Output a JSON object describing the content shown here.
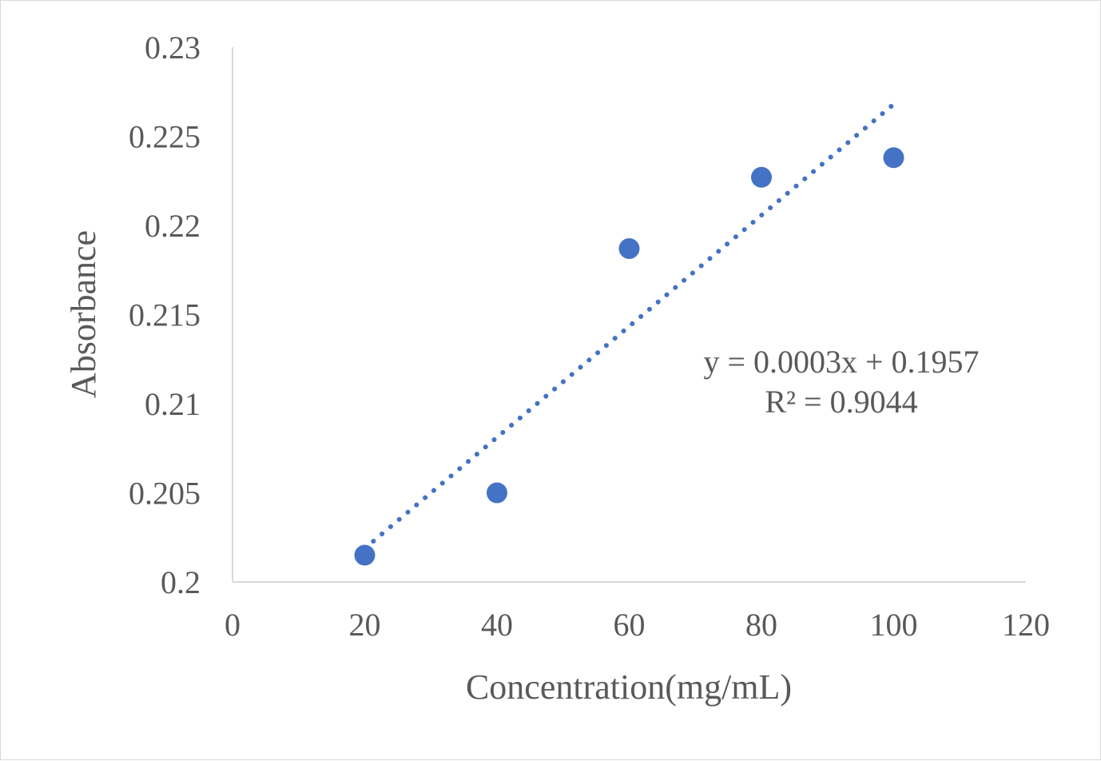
{
  "chart_data": {
    "type": "scatter",
    "title": "",
    "xlabel": "Concentration(mg/mL)",
    "ylabel": "Absorbance",
    "xlim": [
      0,
      120
    ],
    "ylim": [
      0.2,
      0.23
    ],
    "x_ticks": [
      "0",
      "20",
      "40",
      "60",
      "80",
      "100",
      "120"
    ],
    "y_ticks": [
      "0.2",
      "0.205",
      "0.21",
      "0.215",
      "0.22",
      "0.225",
      "0.23"
    ],
    "grid": false,
    "legend": "none",
    "series": [
      {
        "x": [
          20,
          40,
          60,
          80,
          100
        ],
        "y": [
          0.2015,
          0.205,
          0.2187,
          0.2227,
          0.2238
        ],
        "color": "#4472c4"
      }
    ],
    "trendline": {
      "type": "linear",
      "style": "dotted",
      "color": "#4472c4",
      "x_range": [
        20,
        100
      ],
      "equation_label": "y = 0.0003x + 0.1957",
      "r2_label": "R² = 0.9044"
    }
  }
}
